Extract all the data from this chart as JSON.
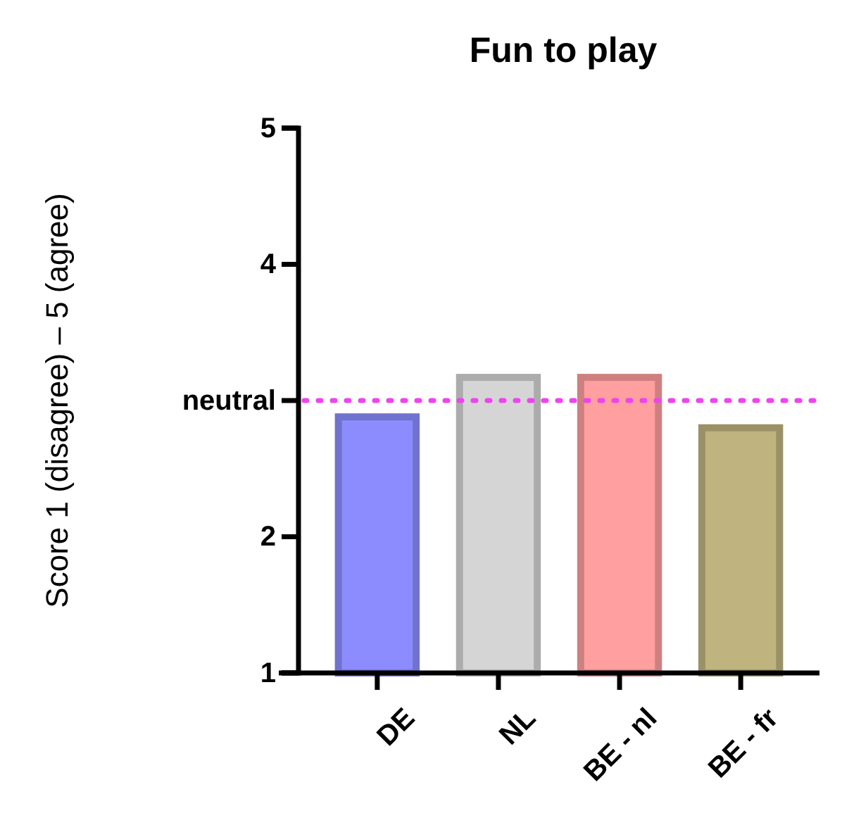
{
  "chart_data": {
    "type": "bar",
    "title": "Fun to play",
    "ylabel": "Score 1 (disagree) – 5 (agree)",
    "categories": [
      "DE",
      "NL",
      "BE - nl",
      "BE - fr"
    ],
    "values": [
      2.88,
      3.17,
      3.17,
      2.8
    ],
    "colors": [
      "#8c8cff",
      "#d5d5d5",
      "#ff9f9f",
      "#bfb47f"
    ],
    "ylim": [
      1,
      5
    ],
    "yticks": [
      1,
      2,
      {
        "value": 3,
        "label": "neutral"
      },
      4,
      5
    ],
    "ref_lines": [
      {
        "axis": "y",
        "value": 3,
        "color": "#ee44ee",
        "line_style": "dotted"
      }
    ],
    "grid": false
  }
}
